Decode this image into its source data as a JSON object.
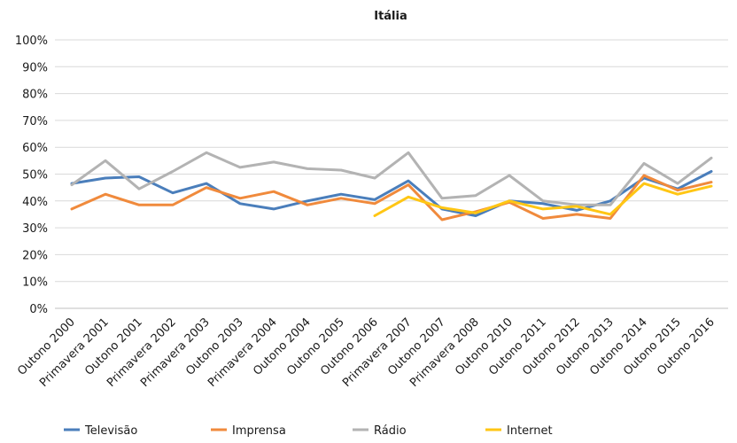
{
  "chart_data": {
    "type": "line",
    "title": "Itália",
    "xlabel": "",
    "ylabel": "",
    "ylim": [
      0,
      100
    ],
    "y_ticks": [
      "0%",
      "10%",
      "20%",
      "30%",
      "40%",
      "50%",
      "60%",
      "70%",
      "80%",
      "90%",
      "100%"
    ],
    "grid": true,
    "legend_position": "bottom",
    "categories": [
      "Outono  2000",
      "Primavera 2001",
      "Outono 2001",
      "Primavera 2002",
      "Primavera 2003",
      "Outono 2003",
      "Primavera 2004",
      "Outono 2004",
      "Outono 2005",
      "Outono 2006",
      "Primavera 2007",
      "Outono 2007",
      "Primavera 2008",
      "Outono 2010",
      "Outono 2011",
      "Outono 2012",
      "Outono 2013",
      "Outono 2014",
      "Outono 2015",
      "Outono 2016"
    ],
    "series": [
      {
        "name": "Televisão",
        "color": "#4a7ebb",
        "values": [
          46.5,
          48.5,
          49,
          43,
          46.5,
          39,
          37,
          40,
          42.5,
          40.5,
          47.5,
          37,
          34.5,
          40,
          39,
          36.5,
          40,
          48.5,
          44.5,
          51
        ]
      },
      {
        "name": "Imprensa",
        "color": "#f08a3c",
        "values": [
          37,
          42.5,
          38.5,
          38.5,
          45,
          41,
          43.5,
          38.5,
          41,
          39,
          46,
          33,
          36,
          39.5,
          33.5,
          35,
          33.5,
          49.5,
          44,
          47
        ]
      },
      {
        "name": "Rádio",
        "color": "#b3b3b3",
        "values": [
          46,
          55,
          44.5,
          51,
          58,
          52.5,
          54.5,
          52,
          51.5,
          48.5,
          58,
          41,
          42,
          49.5,
          40,
          38.5,
          38.5,
          54,
          46.5,
          56
        ]
      },
      {
        "name": "Internet",
        "color": "#ffc614",
        "values": [
          null,
          null,
          null,
          null,
          null,
          null,
          null,
          null,
          null,
          34.5,
          41.5,
          37.5,
          35.5,
          40,
          37,
          38,
          35,
          46.5,
          42.5,
          45.5
        ]
      }
    ]
  }
}
